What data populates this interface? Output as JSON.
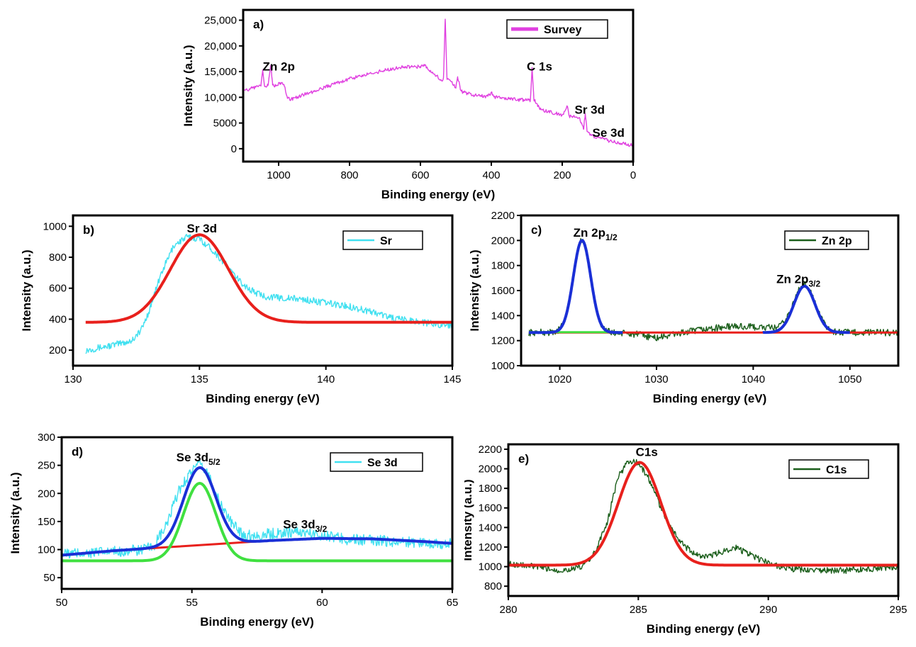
{
  "chart_data": [
    {
      "id": "a",
      "type": "line",
      "panel_label": "a)",
      "xlabel": "Binding energy (eV)",
      "ylabel": "Intensity (a.u.)",
      "xlim": [
        1100,
        0
      ],
      "ylim": [
        -2500,
        27000
      ],
      "x_reversed": true,
      "x_ticks": [
        1000,
        800,
        600,
        400,
        200,
        0
      ],
      "x_tick_labels": [
        "1000",
        "800",
        "600",
        "400",
        "200",
        "0"
      ],
      "y_ticks": [
        0,
        5000,
        10000,
        15000,
        20000,
        25000
      ],
      "y_tick_labels": [
        "0",
        "5000",
        "10,000",
        "15,000",
        "20,000",
        "25,000"
      ],
      "legend": [
        {
          "name": "Survey",
          "color": "#e040e0"
        }
      ],
      "legend_position": "top-right",
      "annotations": [
        {
          "text": "Zn 2p",
          "x": 1045,
          "y": 15200
        },
        {
          "text": "C 1s",
          "x": 300,
          "y": 15200
        },
        {
          "text": "Sr 3d",
          "x": 165,
          "y": 6800
        },
        {
          "text": "Se 3d",
          "x": 115,
          "y": 2300
        }
      ],
      "series": [
        {
          "name": "Survey",
          "color": "#e040e0",
          "noise": 350,
          "x": [
            1100,
            1075,
            1050,
            1045,
            1040,
            1030,
            1022,
            1017,
            1010,
            995,
            985,
            975,
            965,
            900,
            800,
            700,
            650,
            600,
            590,
            580,
            560,
            540,
            535,
            530,
            525,
            510,
            500,
            495,
            485,
            470,
            450,
            410,
            400,
            390,
            300,
            290,
            285,
            280,
            270,
            260,
            240,
            200,
            185,
            180,
            170,
            150,
            140,
            135,
            130,
            110,
            100,
            60,
            0
          ],
          "y": [
            11200,
            11800,
            12200,
            15200,
            12300,
            12300,
            16200,
            12400,
            12200,
            12800,
            12500,
            9800,
            9600,
            11200,
            13600,
            15300,
            15800,
            16000,
            16400,
            15600,
            14500,
            13200,
            13800,
            25200,
            13500,
            12800,
            11800,
            14000,
            11200,
            10800,
            10400,
            10200,
            11000,
            10000,
            9400,
            9400,
            15800,
            9500,
            8600,
            7600,
            7200,
            6600,
            8200,
            6400,
            6300,
            5800,
            3800,
            6800,
            3400,
            2200,
            2200,
            1400,
            600
          ]
        }
      ]
    },
    {
      "id": "b",
      "type": "line",
      "panel_label": "b)",
      "xlabel": "Binding energy (eV)",
      "ylabel": "Intensity (a.u.)",
      "xlim": [
        130,
        145
      ],
      "ylim": [
        100,
        1070
      ],
      "x_ticks": [
        130,
        135,
        140,
        145
      ],
      "x_tick_labels": [
        "130",
        "135",
        "140",
        "145"
      ],
      "y_ticks": [
        200,
        400,
        600,
        800,
        1000
      ],
      "y_tick_labels": [
        "200",
        "400",
        "600",
        "800",
        "1000"
      ],
      "legend": [
        {
          "name": "Sr",
          "color": "#40e0f0"
        }
      ],
      "legend_position": "top-right",
      "annotations": [
        {
          "text": "Sr 3d",
          "x": 134.5,
          "y": 960
        }
      ],
      "series": [
        {
          "name": "Sr",
          "color": "#40e0f0",
          "noise": 22,
          "x": [
            130.5,
            131.5,
            132.3,
            132.7,
            133.0,
            133.5,
            134.0,
            134.5,
            135.0,
            135.5,
            136.0,
            136.5,
            137.0,
            137.5,
            138.0,
            139.0,
            140.0,
            141.0,
            142.0,
            142.8,
            143.5,
            144.2,
            145
          ],
          "y": [
            200,
            230,
            260,
            330,
            450,
            700,
            880,
            930,
            920,
            850,
            760,
            660,
            590,
            550,
            540,
            530,
            505,
            480,
            440,
            400,
            390,
            370,
            360
          ]
        },
        {
          "name": "",
          "color": "#e8201c",
          "width": 4,
          "gaussian": {
            "center": 135,
            "height": 565,
            "sigma": 1.15,
            "base": 380
          },
          "x_range": [
            130.5,
            145
          ]
        }
      ]
    },
    {
      "id": "c",
      "type": "line",
      "panel_label": "c)",
      "xlabel": "Binding energy (eV)",
      "ylabel": "Intensity (a.u.)",
      "xlim": [
        1016,
        1055
      ],
      "ylim": [
        1000,
        2200
      ],
      "x_ticks": [
        1020,
        1030,
        1040,
        1050
      ],
      "x_tick_labels": [
        "1020",
        "1030",
        "1040",
        "1050"
      ],
      "y_ticks": [
        1000,
        1200,
        1400,
        1600,
        1800,
        2000,
        2200
      ],
      "y_tick_labels": [
        "1000",
        "1200",
        "1400",
        "1600",
        "1800",
        "2000",
        "2200"
      ],
      "legend": [
        {
          "name": "Zn 2p",
          "color": "#1a5e1a"
        }
      ],
      "legend_position": "top-right",
      "annotations": [
        {
          "text": "Zn 2p",
          "sub": "1/2",
          "x": 1021.4,
          "y": 2030
        },
        {
          "text": "Zn 2p",
          "sub": "3/2",
          "x": 1042.4,
          "y": 1660
        }
      ],
      "series": [
        {
          "name": "Zn 2p",
          "color": "#1a5e1a",
          "noise": 28,
          "multigauss": {
            "base": 1265,
            "peaks": [
              {
                "center": 1022.3,
                "height": 735,
                "sigma": 0.9
              },
              {
                "center": 1045.3,
                "height": 370,
                "sigma": 1.1
              }
            ]
          },
          "x_range": [
            1016.8,
            1055
          ],
          "baseline_adj": {
            "x": [
              1016.8,
              1025,
              1028,
              1030,
              1032,
              1035,
              1038,
              1041,
              1044,
              1048,
              1055
            ],
            "y": [
              0,
              0,
              -15,
              -45,
              -10,
              25,
              50,
              40,
              20,
              0,
              0
            ]
          }
        },
        {
          "name": "",
          "color": "#e8201c",
          "width": 3,
          "x": [
            1016.8,
            1055
          ],
          "y": [
            1265,
            1265
          ]
        },
        {
          "name": "",
          "color": "#40e040",
          "width": 3,
          "x": [
            1016.8,
            1026.5
          ],
          "y": [
            1268,
            1268
          ]
        },
        {
          "name": "",
          "color": "#1a2fd6",
          "width": 4,
          "gaussian": {
            "center": 1022.3,
            "height": 735,
            "sigma": 0.9,
            "base": 1265
          },
          "x_range": [
            1016.8,
            1026.5
          ]
        },
        {
          "name": "",
          "color": "#1a2fd6",
          "width": 4,
          "gaussian": {
            "center": 1045.3,
            "height": 370,
            "sigma": 1.1,
            "base": 1265
          },
          "x_range": [
            1041.0,
            1050.0
          ]
        }
      ]
    },
    {
      "id": "d",
      "type": "line",
      "panel_label": "d)",
      "xlabel": "Binding energy (eV)",
      "ylabel": "Intensity (a.u.)",
      "xlim": [
        50,
        65
      ],
      "ylim": [
        30,
        300
      ],
      "x_ticks": [
        50,
        55,
        60,
        65
      ],
      "x_tick_labels": [
        "50",
        "55",
        "60",
        "65"
      ],
      "y_ticks": [
        50,
        100,
        150,
        200,
        250,
        300
      ],
      "y_tick_labels": [
        "50",
        "100",
        "150",
        "200",
        "250",
        "300"
      ],
      "legend": [
        {
          "name": "Se 3d",
          "color": "#40e0f0"
        }
      ],
      "legend_position": "top-right",
      "annotations": [
        {
          "text": "Se 3d",
          "sub": "5/2",
          "x": 54.4,
          "y": 257
        },
        {
          "text": "Se 3d",
          "sub": "3/2",
          "x": 58.5,
          "y": 138
        }
      ],
      "series": [
        {
          "name": "Se 3d",
          "color": "#40e0f0",
          "noise": 10,
          "x": [
            50,
            51,
            52,
            53,
            53.5,
            54,
            54.5,
            55,
            55.3,
            55.6,
            56,
            56.5,
            57,
            57.5,
            58,
            59,
            60,
            61,
            62,
            63,
            64,
            65
          ],
          "y": [
            92,
            94,
            96,
            99,
            104,
            140,
            205,
            242,
            250,
            238,
            190,
            148,
            126,
            125,
            128,
            132,
            126,
            118,
            116,
            114,
            112,
            110
          ]
        },
        {
          "name": "",
          "color": "#e8201c",
          "width": 3,
          "x": [
            50,
            52,
            54,
            56,
            58,
            60,
            62,
            64,
            65
          ],
          "y": [
            90,
            98,
            104,
            110,
            116,
            120,
            119,
            114,
            111
          ]
        },
        {
          "name": "",
          "color": "#40e040",
          "width": 4,
          "gaussian": {
            "center": 55.3,
            "height": 138,
            "sigma": 0.62,
            "base": 80
          },
          "x_range": [
            50,
            65
          ]
        },
        {
          "name": "",
          "color": "#1a2fd6",
          "width": 4,
          "combo": {
            "center": 55.3,
            "height": 138,
            "sigma": 0.62
          },
          "x_range": [
            50,
            65
          ]
        }
      ]
    },
    {
      "id": "e",
      "type": "line",
      "panel_label": "e)",
      "xlabel": "Binding energy (eV)",
      "ylabel": "Intensity (a.u.)",
      "xlim": [
        280,
        295
      ],
      "ylim": [
        700,
        2250
      ],
      "x_ticks": [
        280,
        285,
        290,
        295
      ],
      "x_tick_labels": [
        "280",
        "285",
        "290",
        "295"
      ],
      "y_ticks": [
        800,
        1000,
        1200,
        1400,
        1600,
        1800,
        2000,
        2200
      ],
      "y_tick_labels": [
        "800",
        "1000",
        "1200",
        "1400",
        "1600",
        "1800",
        "2000",
        "2200"
      ],
      "legend": [
        {
          "name": "C1s",
          "color": "#1a5e1a"
        }
      ],
      "legend_position": "top-right",
      "annotations": [
        {
          "text": "C1s",
          "x": 284.9,
          "y": 2130
        }
      ],
      "series": [
        {
          "name": "C1s",
          "color": "#1a5e1a",
          "noise": 32,
          "x": [
            280,
            281,
            282,
            282.8,
            283.3,
            283.8,
            284.2,
            284.6,
            285,
            285.4,
            285.8,
            286.2,
            286.7,
            287.2,
            287.7,
            288.2,
            288.7,
            289.1,
            289.6,
            290.2,
            291,
            292,
            293,
            294,
            295
          ],
          "y": [
            1030,
            1000,
            960,
            990,
            1130,
            1450,
            1900,
            2080,
            2060,
            1900,
            1650,
            1420,
            1230,
            1120,
            1100,
            1150,
            1200,
            1150,
            1080,
            1020,
            970,
            960,
            960,
            980,
            1000
          ]
        },
        {
          "name": "",
          "color": "#e8201c",
          "width": 4,
          "gaussian": {
            "center": 285.05,
            "height": 1050,
            "sigma": 0.82,
            "base": 1015
          },
          "x_range": [
            280,
            295
          ]
        }
      ]
    }
  ]
}
